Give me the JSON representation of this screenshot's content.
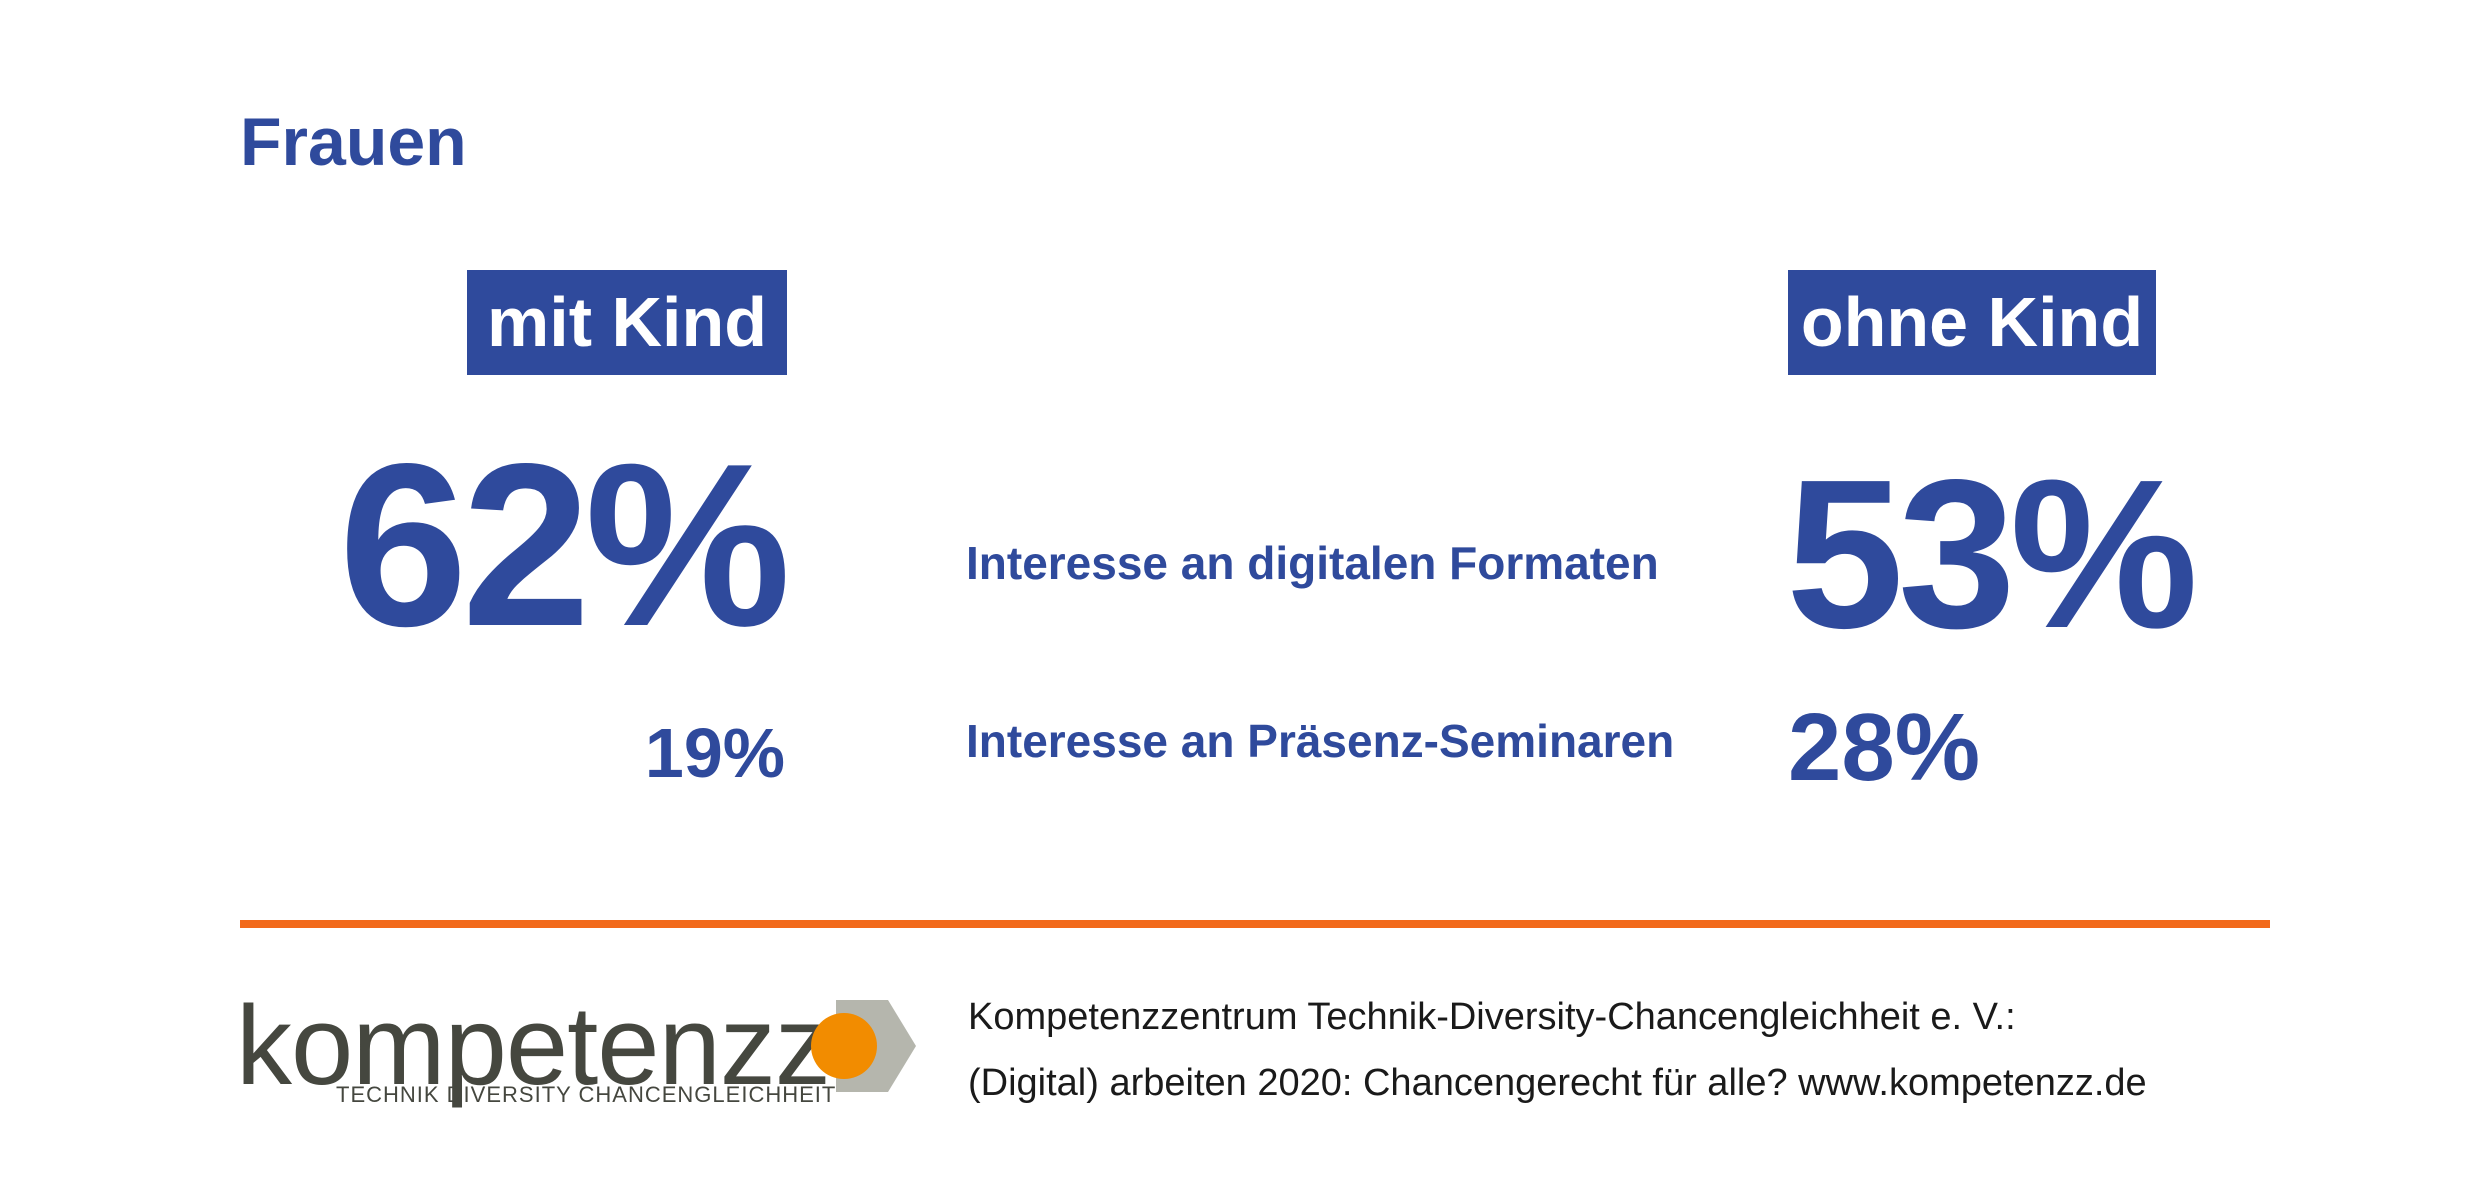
{
  "heading": "Frauen",
  "columns": {
    "left_label": "mit Kind",
    "right_label": "ohne Kind"
  },
  "rows": [
    {
      "label": "Interesse an digitalen Formaten",
      "mit_kind": "62%",
      "ohne_kind": "53%"
    },
    {
      "label": "Interesse an Präsenz-Seminaren",
      "mit_kind": "19%",
      "ohne_kind": "28%"
    }
  ],
  "logo": {
    "wordmark": "kompetenzz",
    "tagline": "TECHNIK  DIVERSITY  CHANCENGLEICHHEIT",
    "icon": "kompetenzz-logo-mark",
    "colors": {
      "text": "#45473f",
      "dot": "#f28c00",
      "shape": "#b5b6ad"
    }
  },
  "credit": {
    "line1": "Kompetenzzentrum Technik-Diversity-Chancengleichheit e. V.:",
    "line2": "(Digital) arbeiten 2020: Chancengerecht für alle? www.kompetenzz.de"
  },
  "colors": {
    "primary": "#2f4a9c",
    "accent": "#f26a1b",
    "background": "#ffffff"
  }
}
